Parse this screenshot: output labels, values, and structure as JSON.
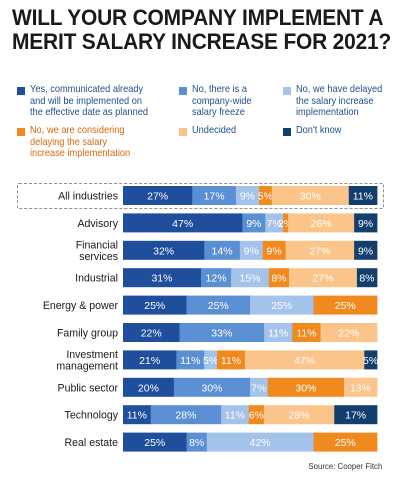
{
  "title_line1": "WILL YOUR COMPANY IMPLEMENT A",
  "title_line2": "MERIT SALARY INCREASE FOR 2021?",
  "source": "Source: Cooper Fitch",
  "colors": {
    "yes": "#1f4e9c",
    "freeze": "#5b8fd4",
    "delayed": "#a4c3ea",
    "considering": "#f08a1f",
    "undecided": "#fbc48b",
    "dont_know": "#123f6e"
  },
  "legend": [
    {
      "lines": [
        "Yes, communicated already",
        "and will be implemented on",
        "the effective date as planned"
      ],
      "color": "#1f4e9c",
      "text_orange": false
    },
    {
      "lines": [
        "No, there is a",
        "company-wide",
        "salary freeze"
      ],
      "color": "#5b8fd4",
      "text_orange": false
    },
    {
      "lines": [
        "No, we have delayed",
        "the salary increase",
        "implementation"
      ],
      "color": "#a4c3ea",
      "text_orange": false
    },
    {
      "lines": [
        "No, we are considering",
        "delaying the salary",
        "increase implementation"
      ],
      "color": "#f08a1f",
      "text_orange": true
    },
    {
      "lines": [
        "Undecided"
      ],
      "color": "#fbc48b",
      "text_orange": false
    },
    {
      "lines": [
        "Don't know"
      ],
      "color": "#123f6e",
      "text_orange": false
    }
  ],
  "chart_data": {
    "type": "bar",
    "orientation": "horizontal",
    "stacked": true,
    "percent": true,
    "categories": [
      [
        "All industries"
      ],
      [
        "Advisory"
      ],
      [
        "Financial",
        "services"
      ],
      [
        "Industrial"
      ],
      [
        "Energy & power"
      ],
      [
        "Family group"
      ],
      [
        "Investment",
        "management"
      ],
      [
        "Public sector"
      ],
      [
        "Technology"
      ],
      [
        "Real estate"
      ]
    ],
    "series": [
      {
        "name": "Yes, communicated already and will be implemented on the effective date as planned",
        "key": "yes",
        "values": [
          27,
          47,
          32,
          31,
          25,
          22,
          21,
          20,
          11,
          25
        ]
      },
      {
        "name": "No, there is a company-wide salary freeze",
        "key": "freeze",
        "values": [
          17,
          9,
          14,
          12,
          25,
          33,
          11,
          30,
          28,
          8
        ]
      },
      {
        "name": "No, we have delayed the salary increase implementation",
        "key": "delayed",
        "values": [
          9,
          7,
          9,
          15,
          25,
          11,
          5,
          7,
          11,
          42
        ]
      },
      {
        "name": "No, we are considering delaying the salary increase implementation",
        "key": "considering",
        "values": [
          5,
          2,
          9,
          8,
          25,
          11,
          11,
          30,
          6,
          25
        ]
      },
      {
        "name": "Undecided",
        "key": "undecided",
        "values": [
          30,
          26,
          27,
          27,
          0,
          22,
          47,
          13,
          28,
          0
        ]
      },
      {
        "name": "Don't know",
        "key": "dont_know",
        "values": [
          11,
          9,
          9,
          8,
          0,
          0,
          5,
          0,
          17,
          0
        ]
      }
    ],
    "xlim": [
      0,
      100
    ]
  }
}
